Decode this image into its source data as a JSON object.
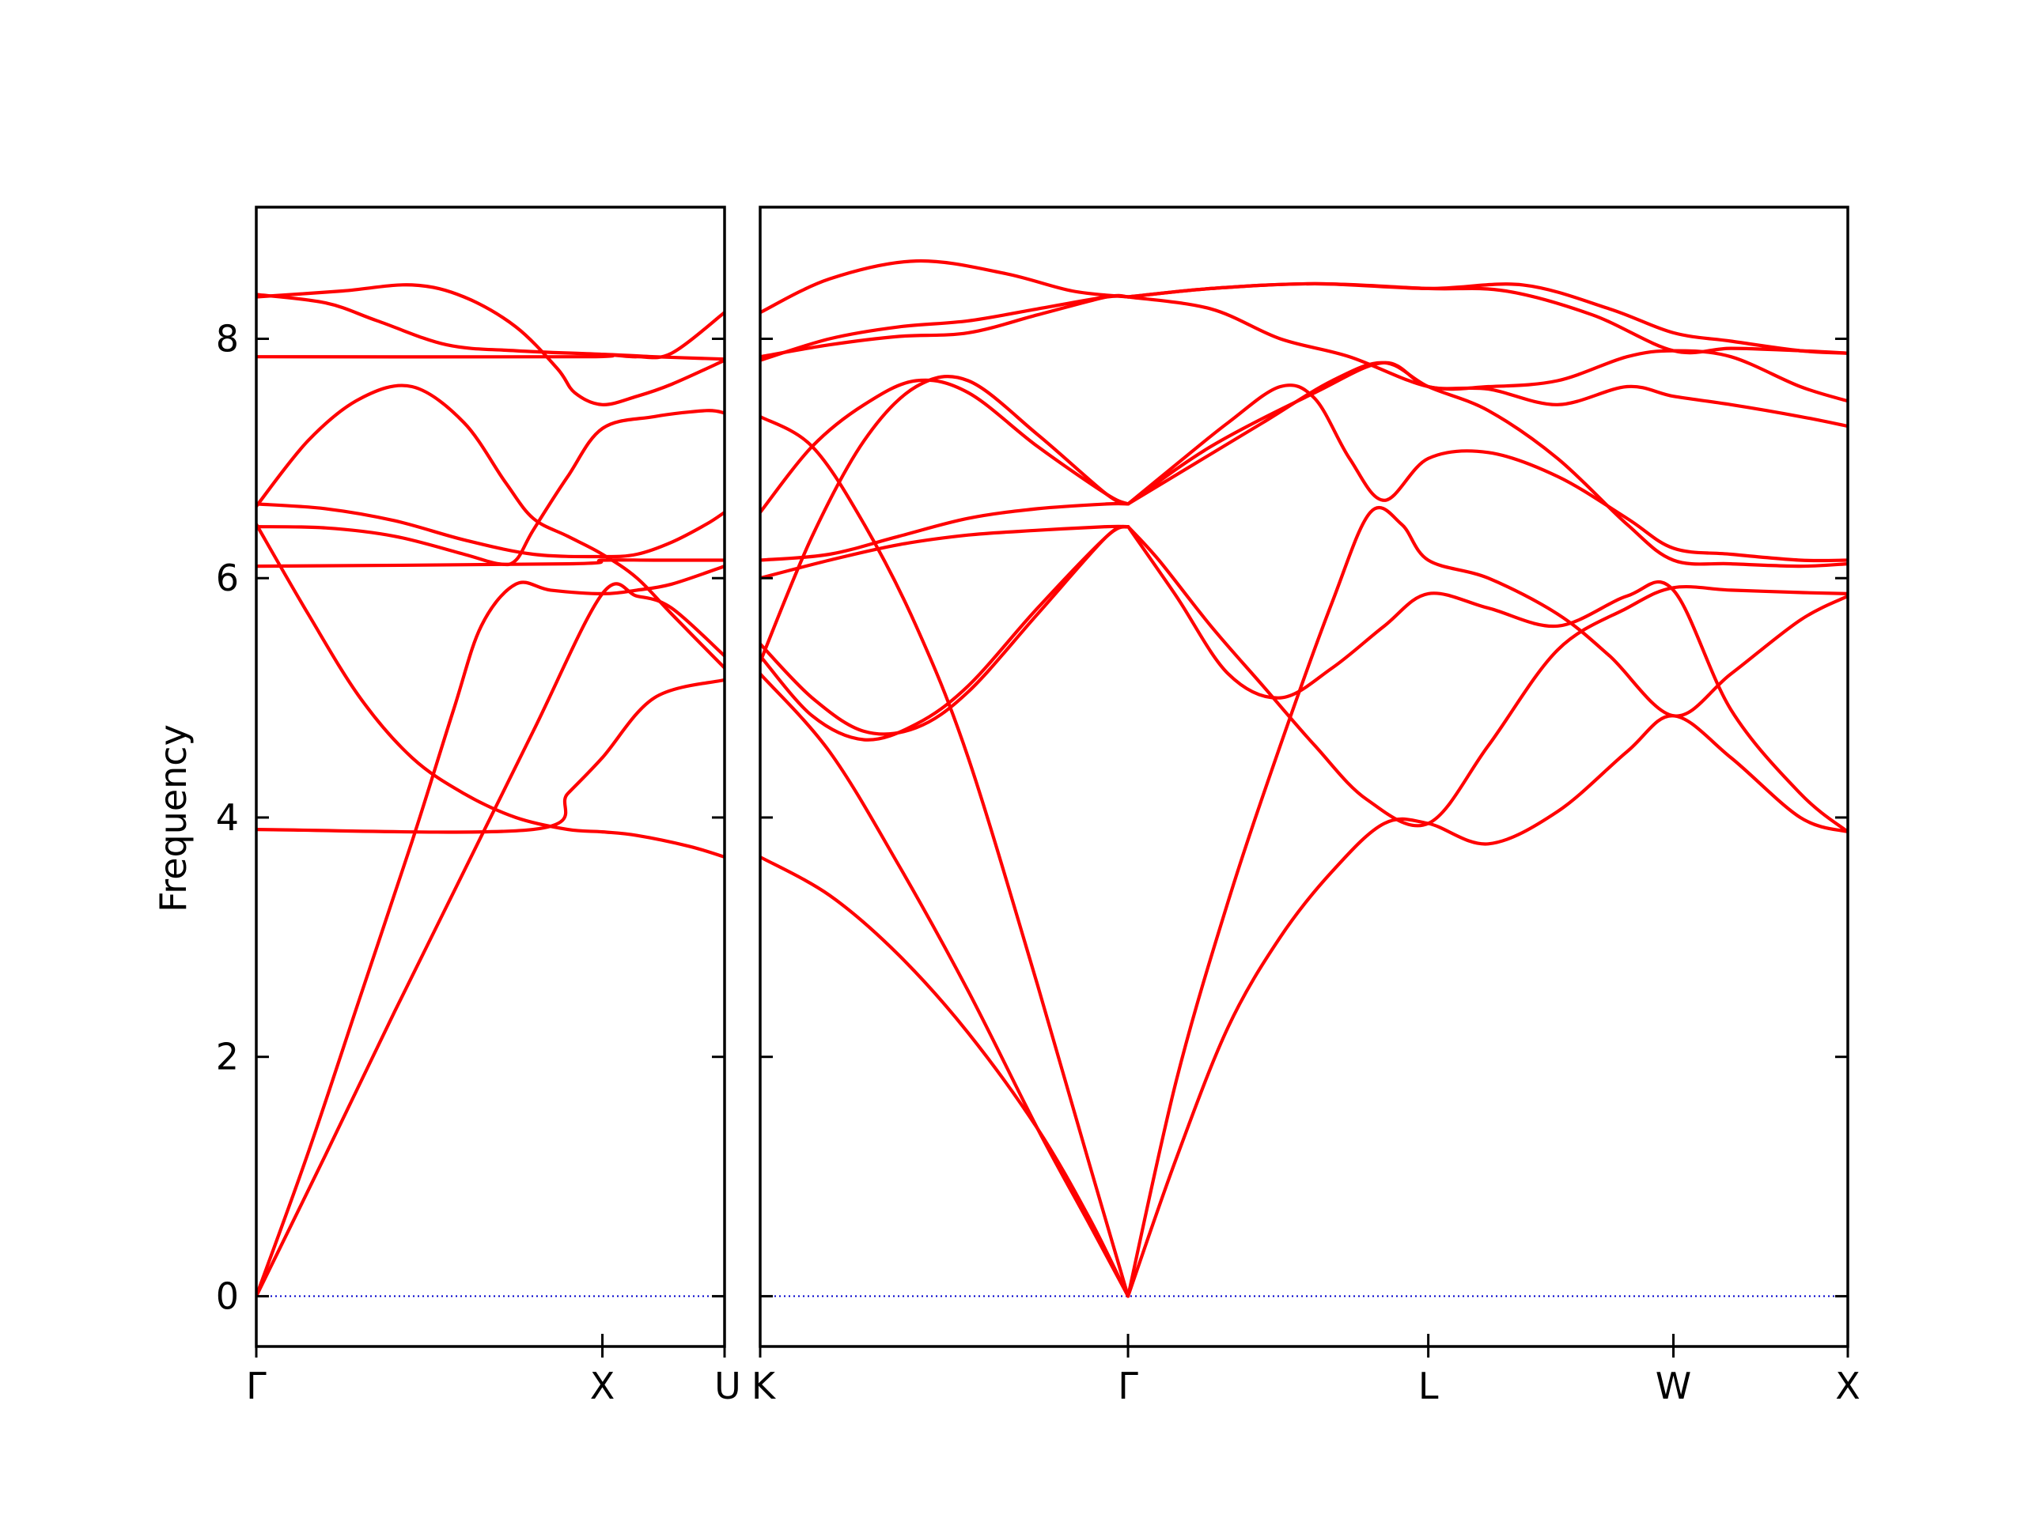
{
  "chart_data": {
    "type": "line",
    "title": "",
    "ylabel": "Frequency",
    "ylim": [
      -0.42,
      9.1
    ],
    "yticks": [
      0,
      2,
      4,
      6,
      8
    ],
    "colors": {
      "band": "#ff0000",
      "zero_line": "#0000cc",
      "axes": "#000000"
    },
    "grid": false,
    "legend": "none",
    "panels": [
      {
        "id": "left",
        "xlim": [
          0,
          1.353
        ],
        "ticks": [
          {
            "x": 0,
            "label": "Γ"
          },
          {
            "x": 1.0,
            "label": "X"
          },
          {
            "x": 1.353,
            "label": "U"
          }
        ],
        "branches": [
          {
            "x": [
              0,
              0.15,
              0.3,
              0.45,
              0.57,
              0.65,
              0.75,
              0.85,
              1.0,
              1.1,
              1.2,
              1.353
            ],
            "y": [
              0,
              1.2,
              2.5,
              3.8,
              4.9,
              5.6,
              5.95,
              5.9,
              5.87,
              5.9,
              5.95,
              6.1
            ]
          },
          {
            "x": [
              0,
              0.2,
              0.4,
              0.6,
              0.8,
              1.0,
              1.1,
              1.2,
              1.353
            ],
            "y": [
              0,
              1.18,
              2.38,
              3.55,
              4.72,
              5.87,
              5.85,
              5.75,
              5.35
            ]
          },
          {
            "x": [
              0,
              0.15,
              0.3,
              0.45,
              0.6,
              0.75,
              0.9,
              1.0,
              1.1,
              1.25,
              1.353
            ],
            "y": [
              6.45,
              5.7,
              5.0,
              4.5,
              4.2,
              4.0,
              3.9,
              3.88,
              3.85,
              3.76,
              3.67
            ]
          },
          {
            "x": [
              0,
              0.15,
              0.3,
              0.45,
              0.6,
              0.72,
              0.8,
              0.9,
              1.0,
              1.1,
              1.2,
              1.353
            ],
            "y": [
              6.6,
              7.15,
              7.5,
              7.6,
              7.3,
              6.8,
              6.5,
              6.35,
              6.2,
              6.0,
              5.7,
              5.25
            ]
          },
          {
            "x": [
              0,
              0.2,
              0.4,
              0.6,
              0.7,
              0.75,
              0.8,
              0.9,
              1.0,
              1.15,
              1.3,
              1.353
            ],
            "y": [
              6.43,
              6.42,
              6.35,
              6.2,
              6.12,
              6.15,
              6.4,
              6.85,
              7.25,
              7.35,
              7.4,
              7.38
            ]
          },
          {
            "x": [
              0,
              0.2,
              0.4,
              0.6,
              0.8,
              1.0,
              1.1,
              1.2,
              1.3,
              1.353
            ],
            "y": [
              6.62,
              6.58,
              6.48,
              6.32,
              6.2,
              6.18,
              6.2,
              6.3,
              6.45,
              6.55
            ]
          },
          {
            "x": [
              0,
              0.25,
              0.45,
              0.6,
              0.75,
              0.87,
              0.92,
              1.0,
              1.1,
              1.2,
              1.353
            ],
            "y": [
              8.35,
              8.4,
              8.45,
              8.35,
              8.1,
              7.75,
              7.55,
              7.45,
              7.52,
              7.62,
              7.82
            ]
          },
          {
            "x": [
              0,
              0.2,
              0.35,
              0.55,
              0.75,
              1.0,
              1.1,
              1.2,
              1.353
            ],
            "y": [
              8.37,
              8.3,
              8.15,
              7.95,
              7.9,
              7.87,
              7.85,
              7.88,
              8.22
            ]
          },
          {
            "x": [
              0,
              0.8,
              0.9,
              1.0,
              1.15,
              1.353
            ],
            "y": [
              3.9,
              3.9,
              4.2,
              4.5,
              5.0,
              5.15
            ]
          },
          {
            "x": [
              0,
              0.9,
              1.0,
              1.15,
              1.353
            ],
            "y": [
              6.1,
              6.12,
              6.15,
              6.15,
              6.15
            ]
          },
          {
            "x": [
              0,
              0.95,
              1.0,
              1.15,
              1.353
            ],
            "y": [
              7.85,
              7.85,
              7.87,
              7.85,
              7.83
            ]
          }
        ]
      },
      {
        "id": "right",
        "xlim": [
          0,
          3.137
        ],
        "ticks": [
          {
            "x": 0,
            "label": "K"
          },
          {
            "x": 1.061,
            "label": "Γ"
          },
          {
            "x": 1.927,
            "label": "L"
          },
          {
            "x": 2.634,
            "label": "W"
          },
          {
            "x": 3.137,
            "label": "X"
          }
        ],
        "branches": [
          {
            "x": [
              0,
              0.2,
              0.4,
              0.6,
              0.8,
              0.95,
              1.061
            ],
            "y": [
              3.67,
              3.35,
              2.85,
              2.2,
              1.4,
              0.65,
              0
            ]
          },
          {
            "x": [
              0,
              0.2,
              0.4,
              0.6,
              0.8,
              0.95,
              1.061
            ],
            "y": [
              5.2,
              4.55,
              3.6,
              2.55,
              1.4,
              0.6,
              0
            ]
          },
          {
            "x": [
              0,
              0.15,
              0.3,
              0.45,
              0.6,
              0.8,
              0.95,
              1.061
            ],
            "y": [
              7.35,
              7.1,
              6.45,
              5.6,
              4.5,
              2.6,
              1.1,
              0
            ]
          },
          {
            "x": [
              1.061,
              1.2,
              1.35,
              1.5,
              1.65,
              1.8,
              1.927,
              2.1,
              2.3,
              2.5,
              2.634,
              2.8,
              3.0,
              3.137
            ],
            "y": [
              0,
              1.15,
              2.25,
              3.0,
              3.55,
              3.95,
              3.95,
              3.78,
              4.05,
              4.55,
              4.85,
              4.5,
              4.0,
              3.88
            ]
          },
          {
            "x": [
              1.061,
              1.2,
              1.35,
              1.5,
              1.65,
              1.76,
              1.85,
              1.927,
              2.1,
              2.3,
              2.45,
              2.634,
              2.8,
              3.0,
              3.137
            ],
            "y": [
              0,
              1.8,
              3.3,
              4.6,
              5.8,
              6.55,
              6.45,
              6.15,
              6.0,
              5.7,
              5.35,
              4.85,
              5.2,
              5.65,
              5.85
            ]
          },
          {
            "x": [
              0,
              0.15,
              0.3,
              0.45,
              0.6,
              0.8,
              1.0,
              1.061
            ],
            "y": [
              5.45,
              5.0,
              4.72,
              4.75,
              5.05,
              5.7,
              6.35,
              6.43
            ]
          },
          {
            "x": [
              0,
              0.15,
              0.3,
              0.45,
              0.6,
              0.8,
              1.0,
              1.061
            ],
            "y": [
              5.35,
              4.85,
              4.65,
              4.78,
              5.1,
              5.75,
              6.35,
              6.43
            ]
          },
          {
            "x": [
              1.061,
              1.15,
              1.3,
              1.45,
              1.6,
              1.75,
              1.927,
              2.1,
              2.3,
              2.5,
              2.634,
              2.8,
              3.0,
              3.137
            ],
            "y": [
              6.43,
              6.15,
              5.6,
              5.1,
              4.6,
              4.15,
              3.95,
              4.6,
              5.4,
              5.75,
              5.92,
              5.9,
              5.88,
              5.87
            ]
          },
          {
            "x": [
              1.061,
              1.2,
              1.35,
              1.5,
              1.65,
              1.8,
              1.927,
              2.1,
              2.3,
              2.5,
              2.634,
              2.8,
              3.0,
              3.137
            ],
            "y": [
              6.43,
              5.85,
              5.2,
              5.0,
              5.25,
              5.6,
              5.87,
              5.75,
              5.6,
              5.85,
              5.9,
              4.9,
              4.2,
              3.88
            ]
          },
          {
            "x": [
              0,
              0.2,
              0.4,
              0.6,
              0.8,
              1.0,
              1.061
            ],
            "y": [
              6.0,
              6.15,
              6.28,
              6.36,
              6.4,
              6.43,
              6.43
            ]
          },
          {
            "x": [
              0,
              0.2,
              0.4,
              0.6,
              0.8,
              1.0,
              1.061
            ],
            "y": [
              6.15,
              6.2,
              6.35,
              6.5,
              6.58,
              6.62,
              6.62
            ]
          },
          {
            "x": [
              0,
              0.15,
              0.3,
              0.45,
              0.6,
              0.8,
              1.0,
              1.061
            ],
            "y": [
              5.3,
              6.35,
              7.15,
              7.6,
              7.65,
              7.2,
              6.7,
              6.62
            ]
          },
          {
            "x": [
              0,
              0.15,
              0.3,
              0.45,
              0.6,
              0.8,
              1.0,
              1.061
            ],
            "y": [
              6.55,
              7.1,
              7.45,
              7.65,
              7.55,
              7.1,
              6.7,
              6.62
            ]
          },
          {
            "x": [
              1.061,
              1.2,
              1.35,
              1.5,
              1.6,
              1.7,
              1.8,
              1.927,
              2.1,
              2.3,
              2.5,
              2.634,
              2.8,
              3.0,
              3.137
            ],
            "y": [
              6.62,
              6.95,
              7.3,
              7.6,
              7.5,
              7.0,
              6.65,
              7.0,
              7.05,
              6.85,
              6.5,
              6.25,
              6.2,
              6.15,
              6.15
            ]
          },
          {
            "x": [
              1.061,
              1.25,
              1.45,
              1.65,
              1.8,
              1.927,
              2.1,
              2.3,
              2.5,
              2.634,
              2.8,
              3.0,
              3.137
            ],
            "y": [
              6.62,
              6.95,
              7.3,
              7.65,
              7.8,
              7.6,
              7.4,
              7.0,
              6.45,
              6.15,
              6.12,
              6.1,
              6.12
            ]
          },
          {
            "x": [
              1.061,
              1.3,
              1.6,
              1.8,
              1.927,
              2.1,
              2.3,
              2.5,
              2.634,
              2.8,
              3.0,
              3.137
            ],
            "y": [
              6.62,
              7.1,
              7.55,
              7.8,
              7.6,
              7.58,
              7.45,
              7.6,
              7.52,
              7.45,
              7.35,
              7.27
            ]
          },
          {
            "x": [
              0,
              0.2,
              0.4,
              0.6,
              0.8,
              1.0,
              1.061
            ],
            "y": [
              7.85,
              7.95,
              8.02,
              8.05,
              8.2,
              8.35,
              8.35
            ]
          },
          {
            "x": [
              0,
              0.2,
              0.4,
              0.6,
              0.8,
              1.0,
              1.061
            ],
            "y": [
              7.82,
              8.0,
              8.1,
              8.15,
              8.25,
              8.35,
              8.35
            ]
          },
          {
            "x": [
              0,
              0.2,
              0.45,
              0.7,
              0.9,
              1.061
            ],
            "y": [
              8.22,
              8.5,
              8.65,
              8.55,
              8.4,
              8.35
            ]
          },
          {
            "x": [
              1.061,
              1.3,
              1.5,
              1.7,
              1.927,
              2.1,
              2.3,
              2.5,
              2.634,
              2.8,
              3.0,
              3.137
            ],
            "y": [
              8.35,
              8.25,
              8.0,
              7.85,
              7.6,
              7.6,
              7.65,
              7.85,
              7.9,
              7.85,
              7.6,
              7.48
            ]
          },
          {
            "x": [
              1.061,
              1.3,
              1.6,
              1.927,
              2.15,
              2.4,
              2.634,
              2.8,
              3.0,
              3.137
            ],
            "y": [
              8.35,
              8.42,
              8.46,
              8.42,
              8.4,
              8.2,
              7.9,
              7.92,
              7.9,
              7.88
            ]
          },
          {
            "x": [
              1.061,
              1.3,
              1.6,
              1.927,
              2.2,
              2.45,
              2.634,
              2.8,
              3.0,
              3.137
            ],
            "y": [
              8.35,
              8.42,
              8.46,
              8.42,
              8.45,
              8.25,
              8.05,
              7.98,
              7.9,
              7.88
            ]
          }
        ]
      }
    ]
  }
}
